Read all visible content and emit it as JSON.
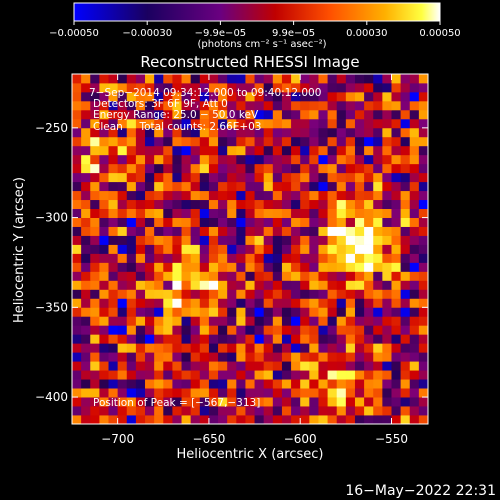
{
  "chart_data": {
    "type": "heatmap",
    "title": "Reconstructed RHESSI Image",
    "xlabel": "Heliocentric X (arcsec)",
    "ylabel": "Heliocentric Y (arcsec)",
    "xlim": [
      -725,
      -530
    ],
    "ylim": [
      -415,
      -220
    ],
    "xticks": [
      -700,
      -650,
      -600,
      -550
    ],
    "yticks": [
      -250,
      -300,
      -350,
      -400
    ],
    "xtick_labels": [
      "−700",
      "−650",
      "−600",
      "−550"
    ],
    "ytick_labels": [
      "−250",
      "−300",
      "−350",
      "−400"
    ],
    "colorbar": {
      "range": [
        -0.0005,
        0.0005
      ],
      "tick_labels": [
        "−0.00050",
        "−0.00030",
        "−9.9e−05",
        "9.9e−05",
        "0.00030",
        "0.00050"
      ],
      "units": "(photons cm⁻² s⁻¹ asec⁻²)"
    },
    "annotations": [
      "7−Sep−2014 09:34:12.000 to 09:40:12.000",
      "Detectors: 3F 6F 9F, Att 0",
      "Energy Range: 25.0 − 50.0 keV",
      "Clean     Total counts: 2.66E+03",
      "Position of Peak = [−567,−313]"
    ],
    "peak": {
      "x": -567,
      "y": -313
    },
    "sources": [
      {
        "x": -567,
        "y": -313,
        "amplitude": 1.0,
        "width": 14
      },
      {
        "x": -660,
        "y": -335,
        "amplitude": 0.75,
        "width": 13
      },
      {
        "x": -585,
        "y": -395,
        "amplitude": 0.55,
        "width": 12
      },
      {
        "x": -712,
        "y": -262,
        "amplitude": 0.5,
        "width": 14
      }
    ],
    "grid": false,
    "colormap": [
      "#0000ff",
      "#2a0050",
      "#7a007a",
      "#d00000",
      "#ff6a00",
      "#ffb000",
      "#ffff40",
      "#ffffff"
    ]
  },
  "timestamp": "16−May−2022 22:31"
}
